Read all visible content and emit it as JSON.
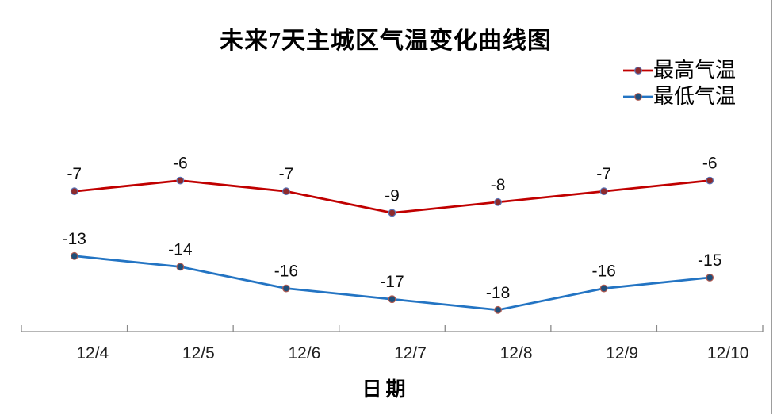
{
  "chart_data": {
    "type": "line",
    "title": "未来7天主城区气温变化曲线图",
    "xlabel": "日期",
    "ylabel": "",
    "categories": [
      "12/4",
      "12/5",
      "12/6",
      "12/7",
      "12/8",
      "12/9",
      "12/10"
    ],
    "series": [
      {
        "name": "最高气温",
        "values": [
          -7,
          -6,
          -7,
          -9,
          -8,
          -7,
          -6
        ],
        "labels": [
          "-7",
          "-6",
          "-7",
          "-9",
          "-8",
          "-7",
          "-6"
        ],
        "color": "#C00000",
        "marker_fill": "#8E2A2C",
        "marker_border": "#5B74B5"
      },
      {
        "name": "最低气温",
        "values": [
          -13,
          -14,
          -16,
          -17,
          -18,
          -16,
          -15
        ],
        "labels": [
          "-13",
          "-14",
          "-16",
          "-17",
          "-18",
          "-16",
          "-15"
        ],
        "color": "#2374C3",
        "marker_fill": "#1F4E79",
        "marker_border": "#B05A50"
      }
    ],
    "ylim": [
      -20,
      0
    ],
    "grid": false,
    "data_labels": true,
    "legend_position": "top-right",
    "axis_color": "#8A8A8A"
  }
}
